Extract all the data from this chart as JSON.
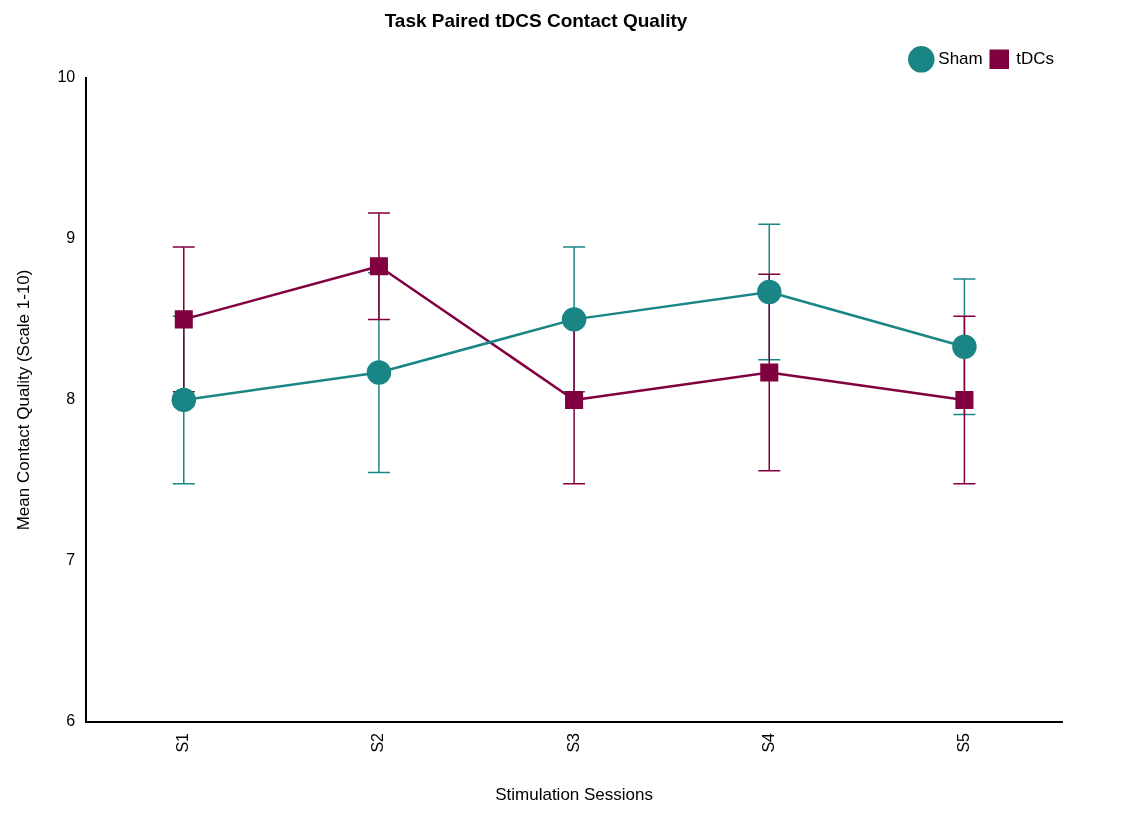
{
  "chart_data": {
    "type": "line",
    "title": "Task Paired tDCS Contact Quality",
    "xlabel": "Stimulation Sessions",
    "ylabel": "Mean Contact Quality (Scale 1-10)",
    "categories": [
      "S1",
      "S2",
      "S3",
      "S4",
      "S5"
    ],
    "series": [
      {
        "name": "Sham",
        "color": "#1a8585",
        "marker": "circle",
        "values": [
          8.0,
          8.17,
          8.5,
          8.67,
          8.33
        ],
        "errors": [
          0.52,
          0.62,
          0.45,
          0.42,
          0.42
        ]
      },
      {
        "name": "tDCs",
        "color": "#800040",
        "marker": "square",
        "values": [
          8.5,
          8.83,
          8.0,
          8.17,
          8.0
        ],
        "errors": [
          0.45,
          0.33,
          0.52,
          0.61,
          0.52
        ]
      }
    ],
    "ylim": [
      6,
      10
    ],
    "yticks": [
      6,
      7,
      8,
      9,
      10
    ],
    "grid": false,
    "legend": "top right",
    "line_style": "solid"
  }
}
